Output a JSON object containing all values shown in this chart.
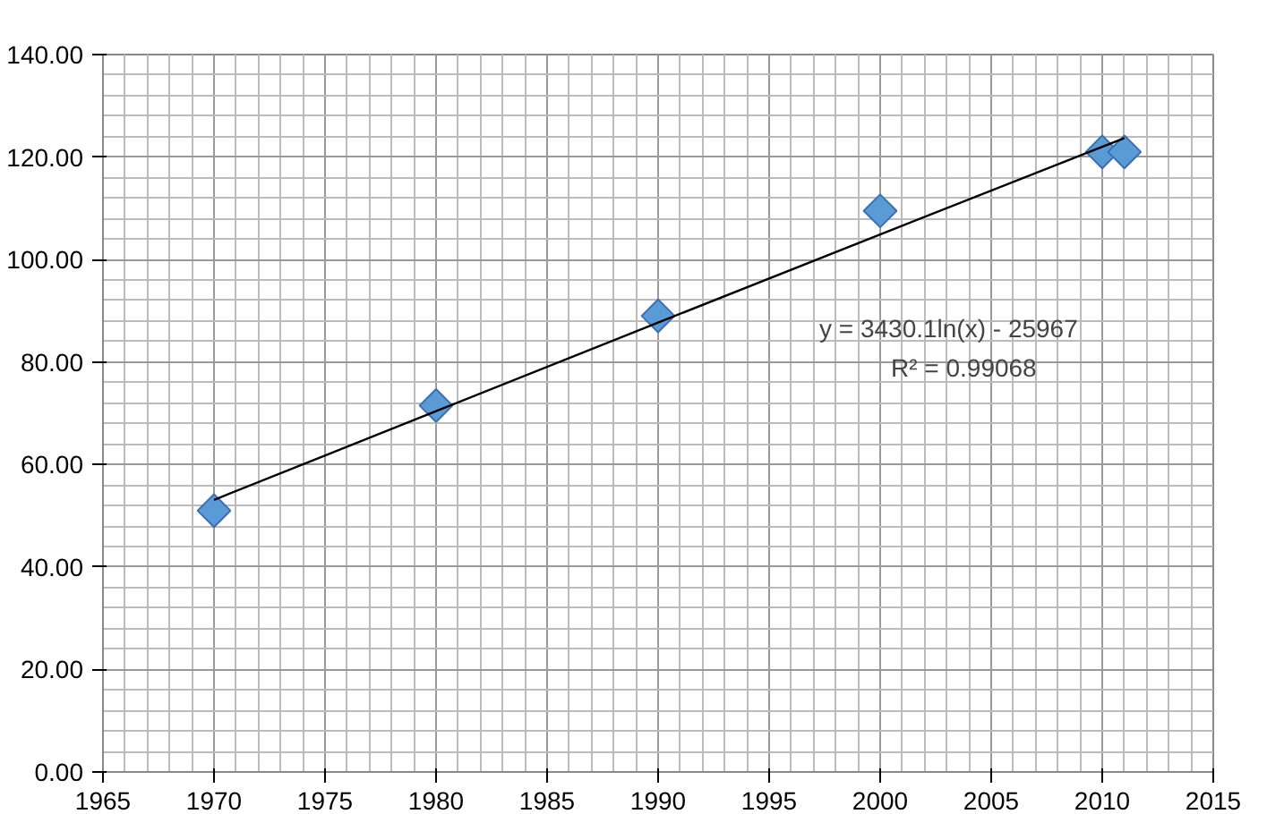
{
  "chart_data": {
    "type": "scatter",
    "grid": true,
    "x": [
      1970,
      1980,
      1990,
      2000,
      2010,
      2011
    ],
    "series": [
      {
        "marker": "diamond",
        "color": "#5b9bd5",
        "values": [
          51,
          71.5,
          89,
          109.5,
          121,
          121
        ]
      },
      {
        "type": "line",
        "color": "#000000",
        "x": [
          1970,
          1980,
          1990,
          2000,
          2010,
          2011
        ],
        "values": [
          53.1,
          70.4,
          87.7,
          104.9,
          122.0,
          123.7
        ]
      }
    ],
    "xlim": [
      1965,
      2015
    ],
    "xticks": [
      1965,
      1970,
      1975,
      1980,
      1985,
      1990,
      1995,
      2000,
      2005,
      2010,
      2015
    ],
    "ylim": [
      0,
      140
    ],
    "yticks": [
      {
        "value": 0,
        "label": "0.00"
      },
      {
        "value": 20,
        "label": "20.00"
      },
      {
        "value": 40,
        "label": "40.00"
      },
      {
        "value": 60,
        "label": "60.00"
      },
      {
        "value": 80,
        "label": "80.00"
      },
      {
        "value": 100,
        "label": "100.00"
      },
      {
        "value": 120,
        "label": "120.00"
      },
      {
        "value": 140,
        "label": "140.00"
      }
    ],
    "annotations": [
      "y = 3430.1ln(x) - 25967",
      "R² = 0.99068"
    ]
  }
}
